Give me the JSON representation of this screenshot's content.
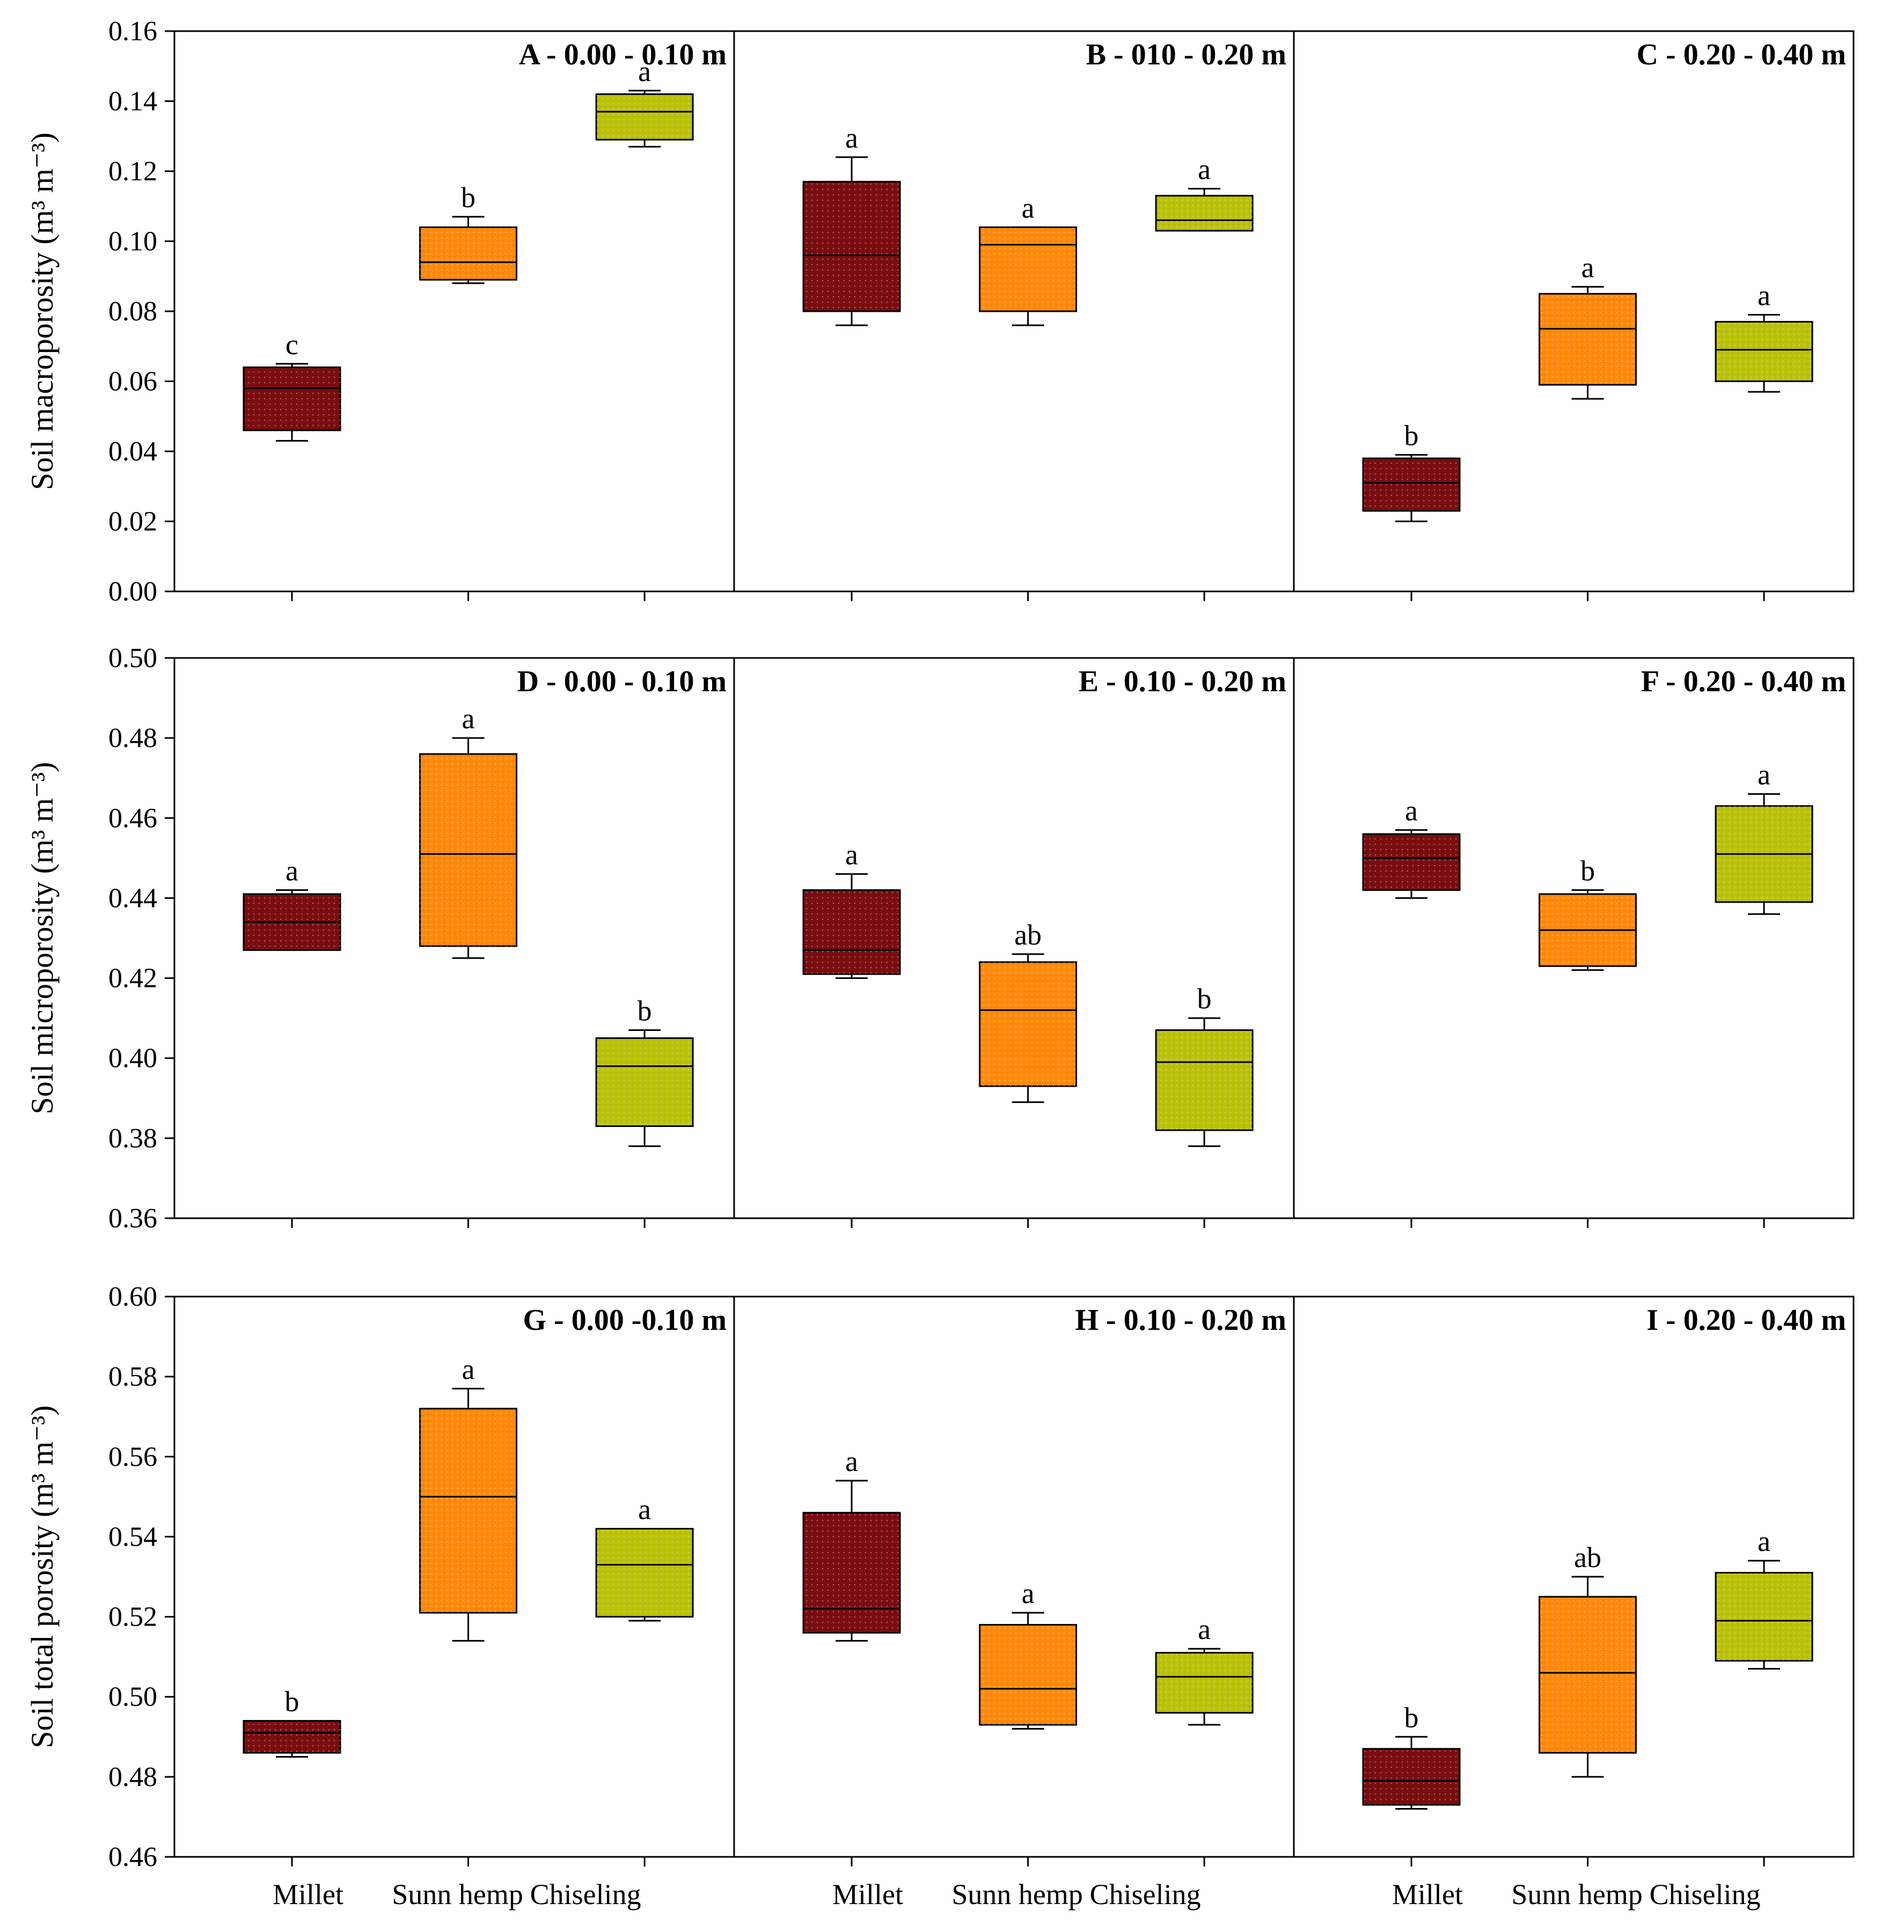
{
  "colors": {
    "Millet": "#7a0d0f",
    "Sunn hemp": "#ff8a0d",
    "Chiseling": "#bcc20a",
    "frame": "#000000",
    "background": "#ffffff"
  },
  "chart_data": [
    {
      "type": "box",
      "row": 0,
      "y_label": "Soil macroporosity (m³ m⁻³)",
      "ylim": [
        0.0,
        0.16
      ],
      "y_ticks": [
        "0.00",
        "0.02",
        "0.04",
        "0.06",
        "0.08",
        "0.10",
        "0.12",
        "0.14",
        "0.16"
      ],
      "categories": [
        "Millet",
        "Sunn hemp",
        "Chiseling"
      ],
      "panels": [
        {
          "title": "A - 0.00 - 0.10 m",
          "boxes": [
            {
              "category": "Millet",
              "min": 0.043,
              "q1": 0.046,
              "median": 0.058,
              "q3": 0.064,
              "max": 0.065,
              "letter": "c"
            },
            {
              "category": "Sunn hemp",
              "min": 0.088,
              "q1": 0.089,
              "median": 0.094,
              "q3": 0.104,
              "max": 0.107,
              "letter": "b"
            },
            {
              "category": "Chiseling",
              "min": 0.127,
              "q1": 0.129,
              "median": 0.137,
              "q3": 0.142,
              "max": 0.143,
              "letter": "a"
            }
          ]
        },
        {
          "title": "B - 010 - 0.20 m",
          "boxes": [
            {
              "category": "Millet",
              "min": 0.076,
              "q1": 0.08,
              "median": 0.096,
              "q3": 0.117,
              "max": 0.124,
              "letter": "a"
            },
            {
              "category": "Sunn hemp",
              "min": 0.076,
              "q1": 0.08,
              "median": 0.099,
              "q3": 0.104,
              "max": 0.104,
              "letter": "a"
            },
            {
              "category": "Chiseling",
              "min": 0.103,
              "q1": 0.103,
              "median": 0.106,
              "q3": 0.113,
              "max": 0.115,
              "letter": "a"
            }
          ]
        },
        {
          "title": "C - 0.20 - 0.40 m",
          "boxes": [
            {
              "category": "Millet",
              "min": 0.02,
              "q1": 0.023,
              "median": 0.031,
              "q3": 0.038,
              "max": 0.039,
              "letter": "b"
            },
            {
              "category": "Sunn hemp",
              "min": 0.055,
              "q1": 0.059,
              "median": 0.075,
              "q3": 0.085,
              "max": 0.087,
              "letter": "a"
            },
            {
              "category": "Chiseling",
              "min": 0.057,
              "q1": 0.06,
              "median": 0.069,
              "q3": 0.077,
              "max": 0.079,
              "letter": "a"
            }
          ]
        }
      ]
    },
    {
      "type": "box",
      "row": 1,
      "y_label": "Soil microporosity (m³ m⁻³)",
      "ylim": [
        0.36,
        0.5
      ],
      "y_ticks": [
        "0.36",
        "0.38",
        "0.40",
        "0.42",
        "0.44",
        "0.46",
        "0.48",
        "0.50"
      ],
      "categories": [
        "Millet",
        "Sunn hemp",
        "Chiseling"
      ],
      "panels": [
        {
          "title": "D - 0.00 - 0.10 m",
          "boxes": [
            {
              "category": "Millet",
              "min": 0.427,
              "q1": 0.427,
              "median": 0.434,
              "q3": 0.441,
              "max": 0.442,
              "letter": "a"
            },
            {
              "category": "Sunn hemp",
              "min": 0.425,
              "q1": 0.428,
              "median": 0.451,
              "q3": 0.476,
              "max": 0.48,
              "letter": "a"
            },
            {
              "category": "Chiseling",
              "min": 0.378,
              "q1": 0.383,
              "median": 0.398,
              "q3": 0.405,
              "max": 0.407,
              "letter": "b"
            }
          ]
        },
        {
          "title": "E - 0.10 - 0.20 m",
          "boxes": [
            {
              "category": "Millet",
              "min": 0.42,
              "q1": 0.421,
              "median": 0.427,
              "q3": 0.442,
              "max": 0.446,
              "letter": "a"
            },
            {
              "category": "Sunn hemp",
              "min": 0.389,
              "q1": 0.393,
              "median": 0.412,
              "q3": 0.424,
              "max": 0.426,
              "letter": "ab"
            },
            {
              "category": "Chiseling",
              "min": 0.378,
              "q1": 0.382,
              "median": 0.399,
              "q3": 0.407,
              "max": 0.41,
              "letter": "b"
            }
          ]
        },
        {
          "title": "F - 0.20 - 0.40 m",
          "boxes": [
            {
              "category": "Millet",
              "min": 0.44,
              "q1": 0.442,
              "median": 0.45,
              "q3": 0.456,
              "max": 0.457,
              "letter": "a"
            },
            {
              "category": "Sunn hemp",
              "min": 0.422,
              "q1": 0.423,
              "median": 0.432,
              "q3": 0.441,
              "max": 0.442,
              "letter": "b"
            },
            {
              "category": "Chiseling",
              "min": 0.436,
              "q1": 0.439,
              "median": 0.451,
              "q3": 0.463,
              "max": 0.466,
              "letter": "a"
            }
          ]
        }
      ]
    },
    {
      "type": "box",
      "row": 2,
      "y_label": "Soil total porosity (m³ m⁻³)",
      "ylim": [
        0.46,
        0.6
      ],
      "y_ticks": [
        "0.46",
        "0.48",
        "0.50",
        "0.52",
        "0.54",
        "0.56",
        "0.58",
        "0.60"
      ],
      "categories": [
        "Millet",
        "Sunn hemp",
        "Chiseling"
      ],
      "panels": [
        {
          "title": "G - 0.00 -0.10 m",
          "boxes": [
            {
              "category": "Millet",
              "min": 0.485,
              "q1": 0.486,
              "median": 0.491,
              "q3": 0.494,
              "max": 0.494,
              "letter": "b"
            },
            {
              "category": "Sunn hemp",
              "min": 0.514,
              "q1": 0.521,
              "median": 0.55,
              "q3": 0.572,
              "max": 0.577,
              "letter": "a"
            },
            {
              "category": "Chiseling",
              "min": 0.519,
              "q1": 0.52,
              "median": 0.533,
              "q3": 0.542,
              "max": 0.542,
              "letter": "a"
            }
          ]
        },
        {
          "title": "H - 0.10 - 0.20 m",
          "boxes": [
            {
              "category": "Millet",
              "min": 0.514,
              "q1": 0.516,
              "median": 0.522,
              "q3": 0.546,
              "max": 0.554,
              "letter": "a"
            },
            {
              "category": "Sunn hemp",
              "min": 0.492,
              "q1": 0.493,
              "median": 0.502,
              "q3": 0.518,
              "max": 0.521,
              "letter": "a"
            },
            {
              "category": "Chiseling",
              "min": 0.493,
              "q1": 0.496,
              "median": 0.505,
              "q3": 0.511,
              "max": 0.512,
              "letter": "a"
            }
          ]
        },
        {
          "title": "I - 0.20 - 0.40 m",
          "boxes": [
            {
              "category": "Millet",
              "min": 0.472,
              "q1": 0.473,
              "median": 0.479,
              "q3": 0.487,
              "max": 0.49,
              "letter": "b"
            },
            {
              "category": "Sunn hemp",
              "min": 0.48,
              "q1": 0.486,
              "median": 0.506,
              "q3": 0.525,
              "max": 0.53,
              "letter": "ab"
            },
            {
              "category": "Chiseling",
              "min": 0.507,
              "q1": 0.509,
              "median": 0.519,
              "q3": 0.531,
              "max": 0.534,
              "letter": "a"
            }
          ]
        }
      ]
    }
  ]
}
